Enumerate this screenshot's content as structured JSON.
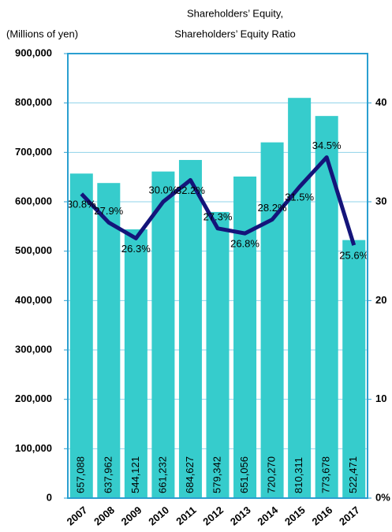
{
  "chart_data": {
    "type": "bar-line",
    "title": "Shareholders’ Equity,",
    "subtitle": "Shareholders’ Equity Ratio",
    "y_label": "(Millions of yen)",
    "categories": [
      "2007",
      "2008",
      "2009",
      "2010",
      "2011",
      "2012",
      "2013",
      "2014",
      "2015",
      "2016",
      "2017"
    ],
    "series": [
      {
        "type": "bar",
        "color": "#36cccc",
        "values": [
          657088,
          637962,
          544121,
          661232,
          684627,
          579342,
          651056,
          720270,
          810311,
          773678,
          522471
        ],
        "value_labels": [
          "657,088",
          "637,962",
          "544,121",
          "661,232",
          "684,627",
          "579,342",
          "651,056",
          "720,270",
          "810,311",
          "773,678",
          "522,471"
        ]
      },
      {
        "type": "line",
        "axis": "y2",
        "color": "#14147a",
        "values": [
          30.8,
          27.9,
          26.3,
          30.0,
          32.2,
          27.3,
          26.8,
          28.2,
          31.5,
          34.5,
          25.6
        ],
        "value_labels": [
          "30.8%",
          "27.9%",
          "26.3%",
          "30.0%",
          "32.2%",
          "27.3%",
          "26.8%",
          "28.2%",
          "31.5%",
          "34.5%",
          "25.6%"
        ]
      }
    ],
    "ylim": [
      0,
      900000
    ],
    "yticks": [
      0,
      {
        "value": 100000,
        "label": "100,000"
      },
      {
        "value": 200000,
        "label": "200,000"
      },
      {
        "value": 300000,
        "label": "300,000"
      },
      {
        "value": 400000,
        "label": "400,000"
      },
      {
        "value": 500000,
        "label": "500,000"
      },
      {
        "value": 600000,
        "label": "600,000"
      },
      {
        "value": 700000,
        "label": "700,000"
      },
      {
        "value": 800000,
        "label": "800,000"
      },
      {
        "value": 900000,
        "label": "900,000"
      }
    ],
    "y2lim": [
      0,
      45
    ],
    "y2ticks": [
      {
        "value": 0,
        "label": "0%"
      },
      10,
      20,
      30,
      40
    ],
    "grid": true
  }
}
